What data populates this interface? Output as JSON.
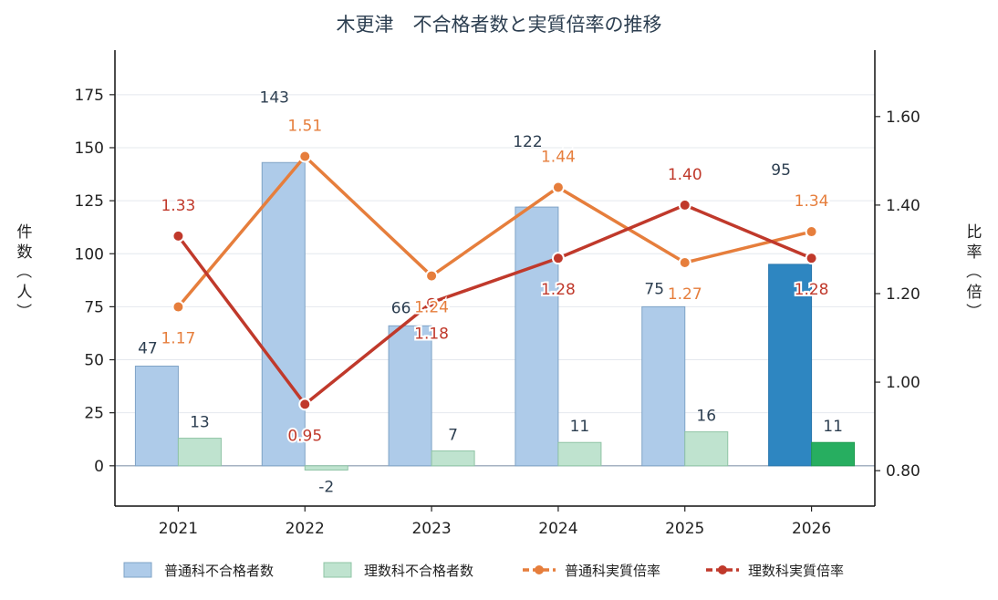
{
  "chart_data": {
    "type": "bar",
    "title": "木更津　不合格者数と実質倍率の推移",
    "categories": [
      "2021",
      "2022",
      "2023",
      "2024",
      "2025",
      "2026"
    ],
    "ylabel_left": "件数（人）",
    "ylabel_right": "比率（倍）",
    "ylim_left": [
      -19,
      196
    ],
    "yticks_left": [
      "0",
      "25",
      "50",
      "75",
      "100",
      "125",
      "150",
      "175"
    ],
    "ylim_right": [
      0.72,
      1.75
    ],
    "yticks_right": [
      "0.80",
      "1.00",
      "1.20",
      "1.40",
      "1.60"
    ],
    "grid": true,
    "legend_position": "bottom",
    "series": [
      {
        "name": "普通科不合格者数",
        "kind": "bar",
        "axis": "left",
        "values": [
          47,
          143,
          66,
          122,
          75,
          95
        ],
        "labels": [
          "47",
          "143",
          "66",
          "122",
          "75",
          "95"
        ],
        "color": "#aecbe9",
        "highlight_color": "#2e86c1"
      },
      {
        "name": "理数科不合格者数",
        "kind": "bar",
        "axis": "left",
        "values": [
          13,
          -2,
          7,
          11,
          16,
          11
        ],
        "labels": [
          "13",
          "-2",
          "7",
          "11",
          "16",
          "11"
        ],
        "color": "#bfe3cf",
        "highlight_color": "#27ae60"
      },
      {
        "name": "普通科実質倍率",
        "kind": "line",
        "axis": "right",
        "values": [
          1.17,
          1.51,
          1.24,
          1.44,
          1.27,
          1.34
        ],
        "labels": [
          "1.17",
          "1.51",
          "1.24",
          "1.44",
          "1.27",
          "1.34"
        ],
        "color": "#e67e3c"
      },
      {
        "name": "理数科実質倍率",
        "kind": "line",
        "axis": "right",
        "values": [
          1.33,
          0.95,
          1.18,
          1.28,
          1.4,
          1.28
        ],
        "labels": [
          "1.33",
          "0.95",
          "1.18",
          "1.28",
          "1.40",
          "1.28"
        ],
        "color": "#c0392b"
      }
    ]
  }
}
